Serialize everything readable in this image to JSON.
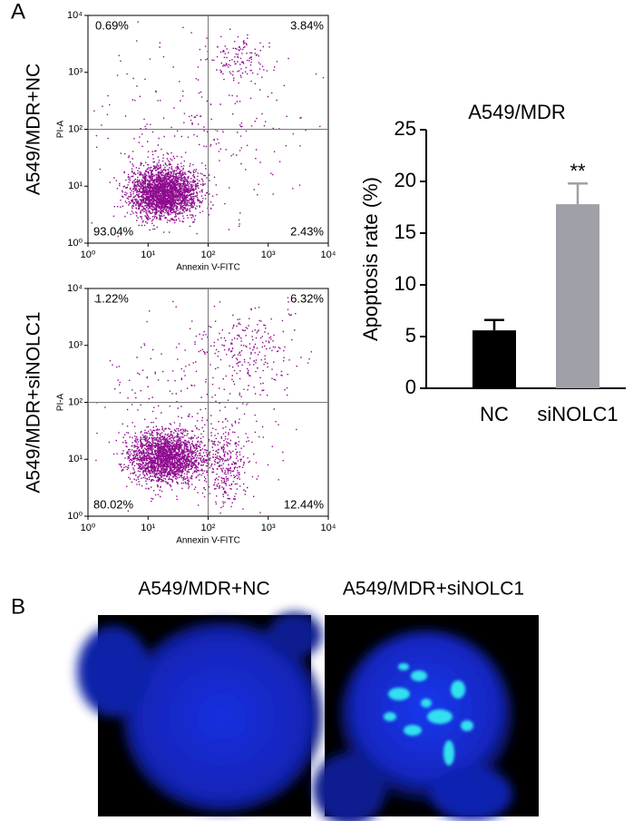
{
  "panel_labels": [
    "A",
    "B"
  ],
  "chart_data": [
    {
      "type": "scatter",
      "row_label": "A549/MDR+NC",
      "xlabel": "Annexin V-FITC",
      "ylabel": "PI-A",
      "log_scale": true,
      "xlim": [
        1,
        10000
      ],
      "ylim": [
        1,
        10000
      ],
      "xticks": [
        {
          "value": 1,
          "label": "10⁰"
        },
        {
          "value": 10,
          "label": "10¹"
        },
        {
          "value": 100,
          "label": "10²"
        },
        {
          "value": 1000,
          "label": "10³"
        },
        {
          "value": 10000,
          "label": "10⁴"
        }
      ],
      "yticks": [
        {
          "value": 1,
          "label": "10⁰"
        },
        {
          "value": 10,
          "label": "10¹"
        },
        {
          "value": 100,
          "label": "10²"
        },
        {
          "value": 1000,
          "label": "10³"
        },
        {
          "value": 10000,
          "label": "10⁴"
        }
      ],
      "gates": [
        100,
        100
      ],
      "quadrant_labels": [
        "0.69%",
        "3.84%",
        "93.04%",
        "2.43%"
      ],
      "color": "#8e0b8e"
    },
    {
      "type": "scatter",
      "row_label": "A549/MDR+siNOLC1",
      "xlabel": "Annexin V-FITC",
      "ylabel": "PI-A",
      "log_scale": true,
      "xlim": [
        1,
        10000
      ],
      "ylim": [
        1,
        10000
      ],
      "xticks": [
        {
          "value": 1,
          "label": "10⁰"
        },
        {
          "value": 10,
          "label": "10¹"
        },
        {
          "value": 100,
          "label": "10²"
        },
        {
          "value": 1000,
          "label": "10³"
        },
        {
          "value": 10000,
          "label": "10⁴"
        }
      ],
      "yticks": [
        {
          "value": 1,
          "label": "10⁰"
        },
        {
          "value": 10,
          "label": "10¹"
        },
        {
          "value": 100,
          "label": "10²"
        },
        {
          "value": 1000,
          "label": "10³"
        },
        {
          "value": 10000,
          "label": "10⁴"
        }
      ],
      "gates": [
        100,
        100
      ],
      "quadrant_labels": [
        "1.22%",
        "6.32%",
        "80.02%",
        "12.44%"
      ],
      "color": "#8e0b8e"
    },
    {
      "type": "bar",
      "title": "A549/MDR",
      "ylabel": "Apoptosis rate (%)",
      "categories": [
        "NC",
        "siNOLC1"
      ],
      "values": [
        5.6,
        17.8
      ],
      "errors": [
        1.0,
        2.0
      ],
      "colors": [
        "#000000",
        "#a0a0a8"
      ],
      "annotations": [
        null,
        "**"
      ],
      "ylim": [
        0,
        25
      ],
      "yticks": [
        0,
        5,
        10,
        15,
        20,
        25
      ]
    }
  ],
  "images": [
    {
      "title": "A549/MDR+NC"
    },
    {
      "title": "A549/MDR+siNOLC1"
    }
  ]
}
